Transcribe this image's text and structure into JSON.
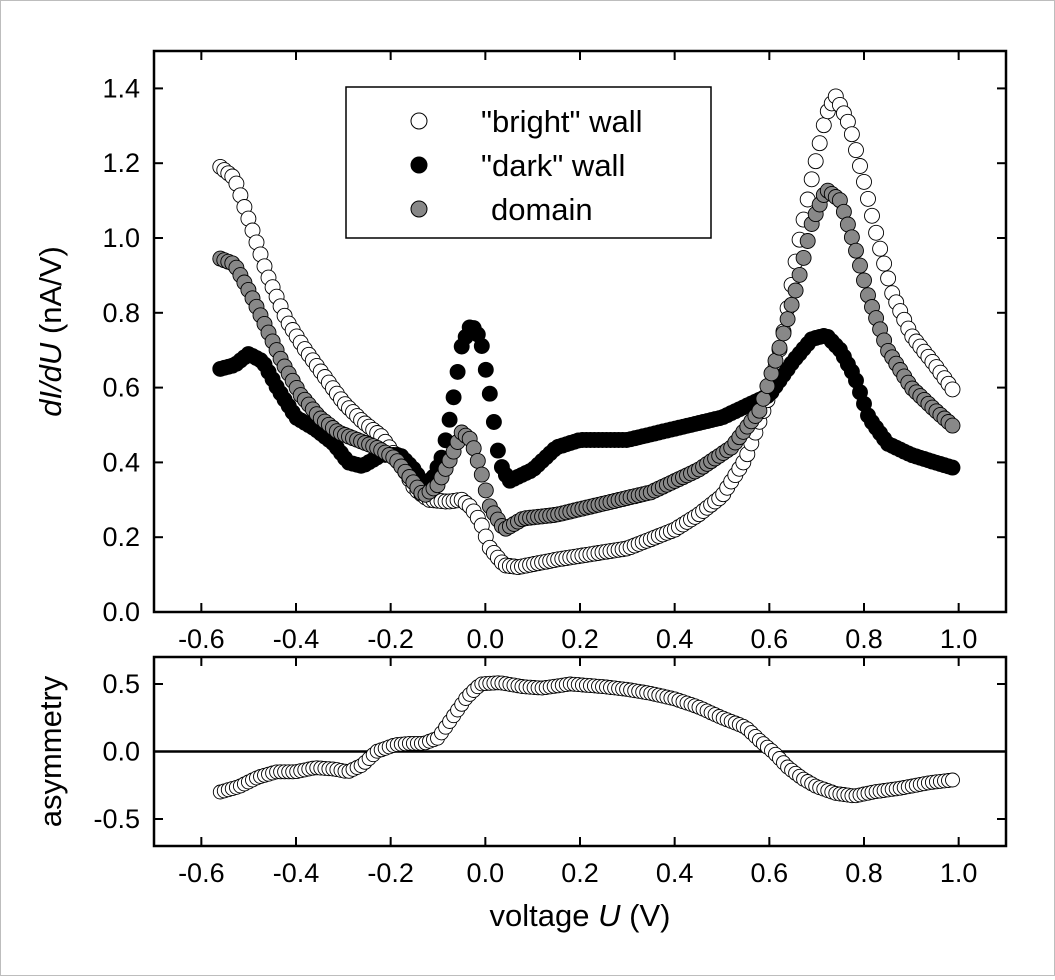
{
  "chart_data": [
    {
      "type": "scatter",
      "ylabel_italic": "dI/dU",
      "ylabel_units": " (nA/V)",
      "xlim": [
        -0.7,
        1.1
      ],
      "ylim": [
        0.0,
        1.5
      ],
      "xticks": [
        "-0.6",
        "-0.4",
        "-0.2",
        "0.0",
        "0.2",
        "0.4",
        "0.6",
        "0.8",
        "1.0"
      ],
      "yticks": [
        "0.0",
        "0.2",
        "0.4",
        "0.6",
        "0.8",
        "1.0",
        "1.2",
        "1.4"
      ],
      "legend_position": "top-center",
      "series": [
        {
          "name": "\"bright\" wall",
          "marker": "open-circle",
          "color": "#ffffff",
          "knots": [
            [
              -0.56,
              1.19
            ],
            [
              -0.53,
              1.16
            ],
            [
              -0.5,
              1.05
            ],
            [
              -0.46,
              0.9
            ],
            [
              -0.42,
              0.78
            ],
            [
              -0.38,
              0.7
            ],
            [
              -0.34,
              0.63
            ],
            [
              -0.3,
              0.56
            ],
            [
              -0.26,
              0.51
            ],
            [
              -0.22,
              0.47
            ],
            [
              -0.18,
              0.4
            ],
            [
              -0.15,
              0.33
            ],
            [
              -0.12,
              0.3
            ],
            [
              -0.08,
              0.295
            ],
            [
              -0.05,
              0.3
            ],
            [
              -0.03,
              0.28
            ],
            [
              -0.01,
              0.24
            ],
            [
              0.01,
              0.17
            ],
            [
              0.04,
              0.125
            ],
            [
              0.07,
              0.12
            ],
            [
              0.15,
              0.14
            ],
            [
              0.3,
              0.17
            ],
            [
              0.4,
              0.22
            ],
            [
              0.45,
              0.26
            ],
            [
              0.5,
              0.31
            ],
            [
              0.55,
              0.41
            ],
            [
              0.6,
              0.58
            ],
            [
              0.63,
              0.75
            ],
            [
              0.66,
              0.97
            ],
            [
              0.69,
              1.16
            ],
            [
              0.72,
              1.33
            ],
            [
              0.74,
              1.38
            ],
            [
              0.77,
              1.3
            ],
            [
              0.8,
              1.15
            ],
            [
              0.83,
              0.99
            ],
            [
              0.86,
              0.85
            ],
            [
              0.9,
              0.74
            ],
            [
              0.95,
              0.66
            ],
            [
              0.99,
              0.59
            ]
          ]
        },
        {
          "name": "\"dark\" wall",
          "marker": "filled-circle",
          "color": "#000000",
          "knots": [
            [
              -0.56,
              0.65
            ],
            [
              -0.53,
              0.66
            ],
            [
              -0.5,
              0.69
            ],
            [
              -0.47,
              0.67
            ],
            [
              -0.44,
              0.6
            ],
            [
              -0.4,
              0.52
            ],
            [
              -0.36,
              0.49
            ],
            [
              -0.32,
              0.45
            ],
            [
              -0.29,
              0.4
            ],
            [
              -0.26,
              0.39
            ],
            [
              -0.22,
              0.42
            ],
            [
              -0.18,
              0.42
            ],
            [
              -0.15,
              0.38
            ],
            [
              -0.13,
              0.34
            ],
            [
              -0.11,
              0.36
            ],
            [
              -0.09,
              0.42
            ],
            [
              -0.07,
              0.55
            ],
            [
              -0.05,
              0.71
            ],
            [
              -0.03,
              0.77
            ],
            [
              -0.01,
              0.73
            ],
            [
              0.01,
              0.58
            ],
            [
              0.03,
              0.4
            ],
            [
              0.05,
              0.35
            ],
            [
              0.1,
              0.38
            ],
            [
              0.15,
              0.44
            ],
            [
              0.2,
              0.46
            ],
            [
              0.3,
              0.46
            ],
            [
              0.4,
              0.49
            ],
            [
              0.5,
              0.52
            ],
            [
              0.6,
              0.58
            ],
            [
              0.65,
              0.67
            ],
            [
              0.69,
              0.73
            ],
            [
              0.72,
              0.74
            ],
            [
              0.75,
              0.7
            ],
            [
              0.78,
              0.63
            ],
            [
              0.81,
              0.52
            ],
            [
              0.85,
              0.45
            ],
            [
              0.9,
              0.42
            ],
            [
              0.95,
              0.4
            ],
            [
              0.99,
              0.385
            ]
          ]
        },
        {
          "name": "domain",
          "marker": "gray-circle",
          "color": "#888888",
          "knots": [
            [
              -0.56,
              0.945
            ],
            [
              -0.53,
              0.93
            ],
            [
              -0.5,
              0.86
            ],
            [
              -0.47,
              0.78
            ],
            [
              -0.43,
              0.67
            ],
            [
              -0.39,
              0.58
            ],
            [
              -0.35,
              0.52
            ],
            [
              -0.31,
              0.48
            ],
            [
              -0.27,
              0.46
            ],
            [
              -0.23,
              0.44
            ],
            [
              -0.19,
              0.41
            ],
            [
              -0.16,
              0.36
            ],
            [
              -0.13,
              0.31
            ],
            [
              -0.1,
              0.34
            ],
            [
              -0.07,
              0.42
            ],
            [
              -0.05,
              0.48
            ],
            [
              -0.03,
              0.46
            ],
            [
              -0.01,
              0.38
            ],
            [
              0.01,
              0.28
            ],
            [
              0.04,
              0.22
            ],
            [
              0.08,
              0.25
            ],
            [
              0.15,
              0.26
            ],
            [
              0.25,
              0.29
            ],
            [
              0.35,
              0.32
            ],
            [
              0.45,
              0.38
            ],
            [
              0.52,
              0.44
            ],
            [
              0.58,
              0.54
            ],
            [
              0.62,
              0.7
            ],
            [
              0.66,
              0.88
            ],
            [
              0.69,
              1.04
            ],
            [
              0.72,
              1.13
            ],
            [
              0.75,
              1.1
            ],
            [
              0.78,
              0.98
            ],
            [
              0.81,
              0.84
            ],
            [
              0.85,
              0.7
            ],
            [
              0.9,
              0.6
            ],
            [
              0.95,
              0.54
            ],
            [
              0.99,
              0.495
            ]
          ]
        }
      ]
    },
    {
      "type": "scatter",
      "xlabel_text": "voltage ",
      "xlabel_italic": "U",
      "xlabel_units": " (V)",
      "ylabel": "asymmetry",
      "xlim": [
        -0.7,
        1.1
      ],
      "ylim": [
        -0.7,
        0.7
      ],
      "xticks": [
        "-0.6",
        "-0.4",
        "-0.2",
        "0.0",
        "0.2",
        "0.4",
        "0.6",
        "0.8",
        "1.0"
      ],
      "yticks": [
        "0.5",
        "0.0",
        "-0.5"
      ],
      "reference_line_y": 0.0,
      "series": [
        {
          "marker": "open-circle",
          "color": "#ffffff",
          "knots": [
            [
              -0.56,
              -0.3
            ],
            [
              -0.52,
              -0.26
            ],
            [
              -0.48,
              -0.19
            ],
            [
              -0.44,
              -0.15
            ],
            [
              -0.4,
              -0.15
            ],
            [
              -0.36,
              -0.12
            ],
            [
              -0.32,
              -0.13
            ],
            [
              -0.29,
              -0.15
            ],
            [
              -0.26,
              -0.1
            ],
            [
              -0.23,
              0.0
            ],
            [
              -0.19,
              0.05
            ],
            [
              -0.16,
              0.06
            ],
            [
              -0.13,
              0.06
            ],
            [
              -0.1,
              0.1
            ],
            [
              -0.07,
              0.25
            ],
            [
              -0.04,
              0.4
            ],
            [
              -0.01,
              0.5
            ],
            [
              0.03,
              0.51
            ],
            [
              0.08,
              0.48
            ],
            [
              0.12,
              0.47
            ],
            [
              0.18,
              0.5
            ],
            [
              0.25,
              0.48
            ],
            [
              0.3,
              0.46
            ],
            [
              0.35,
              0.43
            ],
            [
              0.4,
              0.39
            ],
            [
              0.45,
              0.33
            ],
            [
              0.5,
              0.25
            ],
            [
              0.55,
              0.18
            ],
            [
              0.58,
              0.08
            ],
            [
              0.61,
              -0.01
            ],
            [
              0.64,
              -0.12
            ],
            [
              0.67,
              -0.2
            ],
            [
              0.7,
              -0.26
            ],
            [
              0.74,
              -0.31
            ],
            [
              0.78,
              -0.33
            ],
            [
              0.82,
              -0.3
            ],
            [
              0.88,
              -0.27
            ],
            [
              0.94,
              -0.23
            ],
            [
              0.99,
              -0.21
            ]
          ]
        }
      ]
    }
  ]
}
